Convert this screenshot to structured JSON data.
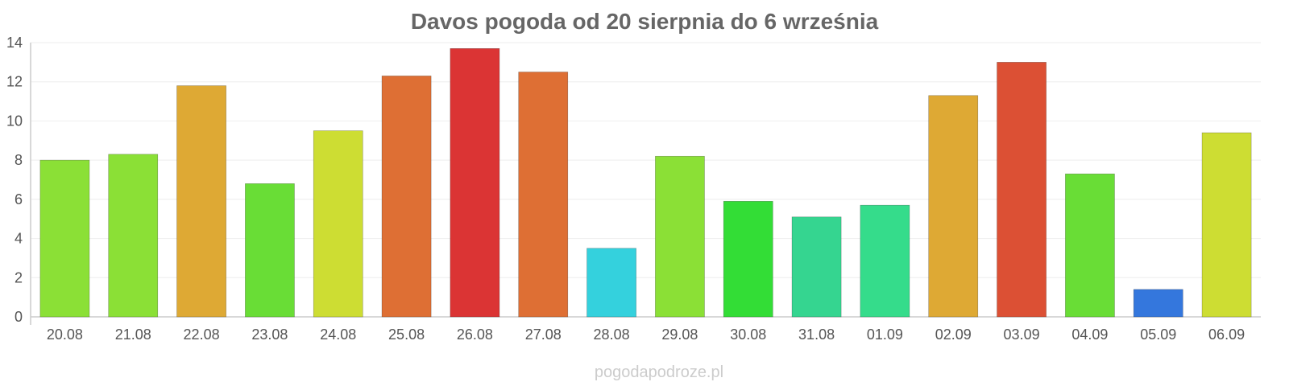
{
  "chart_data": {
    "type": "bar",
    "title": "Davos pogoda od 20 sierpnia do 6 września",
    "xlabel": "",
    "ylabel": "",
    "ylim": [
      0,
      14
    ],
    "yticks": [
      0,
      2,
      4,
      6,
      8,
      10,
      12,
      14
    ],
    "grid": true,
    "legend": "none",
    "categories": [
      "20.08",
      "21.08",
      "22.08",
      "23.08",
      "24.08",
      "25.08",
      "26.08",
      "27.08",
      "28.08",
      "29.08",
      "30.08",
      "31.08",
      "01.09",
      "02.09",
      "03.09",
      "04.09",
      "05.09",
      "06.09"
    ],
    "values": [
      8.0,
      8.3,
      11.8,
      6.8,
      9.5,
      12.3,
      13.7,
      12.5,
      3.5,
      8.2,
      5.9,
      5.1,
      5.7,
      11.3,
      13.0,
      7.3,
      1.4,
      9.4
    ],
    "colors": [
      "#8be036",
      "#8be036",
      "#dea934",
      "#69dd36",
      "#cddd33",
      "#de6f34",
      "#db3434",
      "#de6f34",
      "#34d1dd",
      "#8be036",
      "#33dd36",
      "#35d590",
      "#35dc8b",
      "#dea934",
      "#dc5034",
      "#69dd36",
      "#3477dd",
      "#cddd33"
    ]
  },
  "watermark": "pogodapodroze.pl"
}
